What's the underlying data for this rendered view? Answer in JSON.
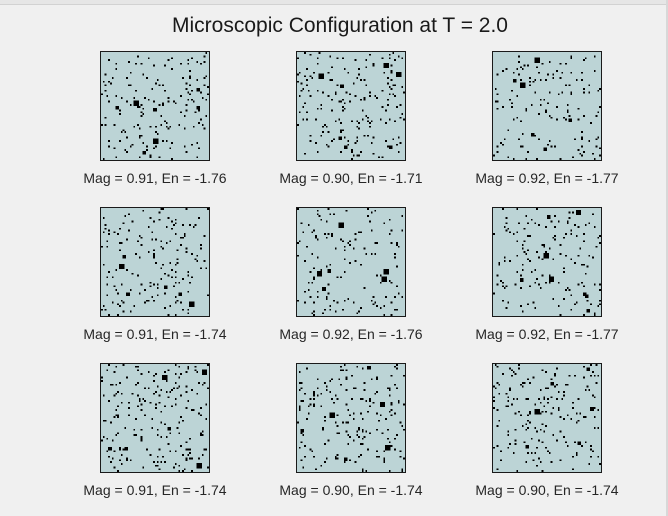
{
  "figure": {
    "title": "Microscopic Configuration at T = 2.0",
    "lattice_colors": {
      "spin_up": "#bcd4d6",
      "spin_down": "#000000"
    },
    "panels": [
      {
        "caption": "Mag = 0.91, En = -1.76",
        "magnetization": 0.91,
        "energy": -1.76
      },
      {
        "caption": "Mag = 0.90, En = -1.71",
        "magnetization": 0.9,
        "energy": -1.71
      },
      {
        "caption": "Mag = 0.92, En = -1.77",
        "magnetization": 0.92,
        "energy": -1.77
      },
      {
        "caption": "Mag = 0.91, En = -1.74",
        "magnetization": 0.91,
        "energy": -1.74
      },
      {
        "caption": "Mag = 0.92, En = -1.76",
        "magnetization": 0.92,
        "energy": -1.76
      },
      {
        "caption": "Mag = 0.92, En = -1.77",
        "magnetization": 0.92,
        "energy": -1.77
      },
      {
        "caption": "Mag = 0.91, En = -1.74",
        "magnetization": 0.91,
        "energy": -1.74
      },
      {
        "caption": "Mag = 0.90, En = -1.74",
        "magnetization": 0.9,
        "energy": -1.74
      },
      {
        "caption": "Mag = 0.90, En = -1.74",
        "magnetization": 0.9,
        "energy": -1.74
      }
    ]
  }
}
